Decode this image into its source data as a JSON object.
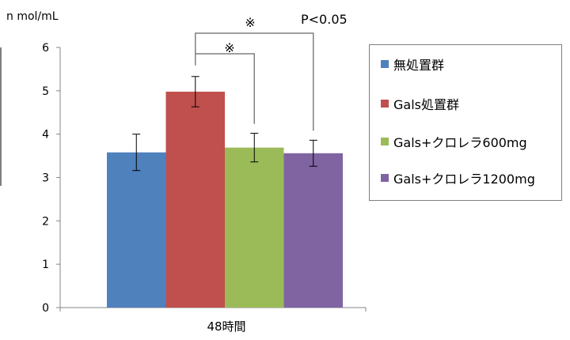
{
  "chart_data": {
    "type": "bar",
    "unit_label": "n mol/mL",
    "categories": [
      "48時間"
    ],
    "ylim": [
      0,
      6
    ],
    "yticks": [
      0,
      1,
      2,
      3,
      4,
      5,
      6
    ],
    "series": [
      {
        "name": "無処置群",
        "values": [
          3.58
        ],
        "error": [
          0.42
        ],
        "color": "#4f81bd"
      },
      {
        "name": "Gals処置群",
        "values": [
          4.98
        ],
        "error": [
          0.35
        ],
        "color": "#c0504d"
      },
      {
        "name": "Gals+クロレラ600mg",
        "values": [
          3.69
        ],
        "error": [
          0.33
        ],
        "color": "#9bbb59"
      },
      {
        "name": "Gals+クロレラ1200mg",
        "values": [
          3.56
        ],
        "error": [
          0.3
        ],
        "color": "#8064a2"
      }
    ],
    "annotations": {
      "mark_inner": "※",
      "mark_outer": "※",
      "pvalue": "P<0.05"
    },
    "legend_position": "right",
    "grid": false
  }
}
